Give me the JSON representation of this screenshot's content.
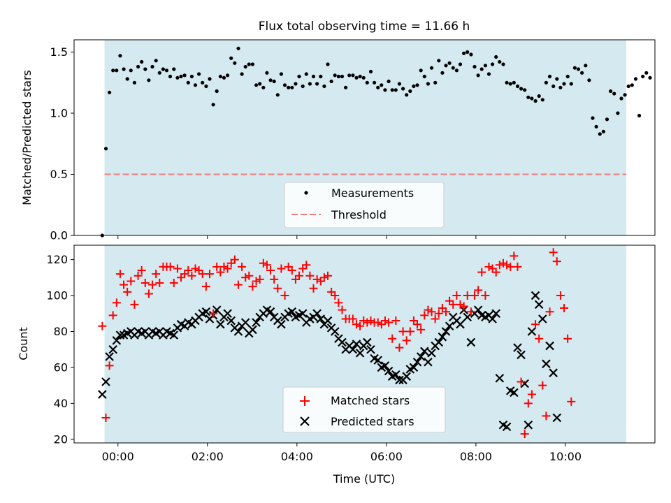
{
  "colors": {
    "shade": "#d4eaf0",
    "threshold": "#f07b7b",
    "matched": "#ff0000",
    "predicted": "#000000",
    "measure": "#000000"
  },
  "chart_data": [
    {
      "type": "scatter",
      "title": "Flux total observing time = 11.66 h",
      "xlabel": "",
      "ylabel": "Matched/Predicted stars",
      "xlim_hours": [
        -0.98,
        12.0
      ],
      "ylim": [
        0,
        1.6
      ],
      "yticks": [
        0.0,
        0.5,
        1.0,
        1.5
      ],
      "ytick_labels": [
        "0.0",
        "0.5",
        "1.0",
        "1.5"
      ],
      "observing_span_hours": [
        -0.3,
        11.36
      ],
      "threshold": 0.5,
      "legend": {
        "position": "bottom-center",
        "entries": [
          "Measurements",
          "Threshold"
        ]
      },
      "series": [
        {
          "name": "Measurements",
          "x_start": -0.35,
          "x_step": 0.08,
          "values": [
            0.0,
            0.71,
            1.17,
            1.35,
            1.35,
            1.47,
            1.36,
            1.28,
            1.35,
            1.25,
            1.38,
            1.42,
            1.36,
            1.27,
            1.38,
            1.43,
            1.33,
            1.36,
            1.35,
            1.3,
            1.36,
            1.29,
            1.3,
            1.31,
            1.25,
            1.3,
            1.23,
            1.32,
            1.25,
            1.22,
            1.28,
            1.07,
            1.18,
            1.3,
            1.29,
            1.31,
            1.45,
            1.41,
            1.53,
            1.32,
            1.38,
            1.4,
            1.4,
            1.23,
            1.24,
            1.21,
            1.33,
            1.27,
            1.26,
            1.15,
            1.32,
            1.23,
            1.21,
            1.21,
            1.24,
            1.3,
            1.22,
            1.32,
            1.24,
            1.3,
            1.24,
            1.3,
            1.22,
            1.4,
            1.26,
            1.31,
            1.3,
            1.3,
            1.21,
            1.31,
            1.31,
            1.29,
            1.3,
            1.29,
            1.25,
            1.34,
            1.25,
            1.21,
            1.23,
            1.19,
            1.26,
            1.19,
            1.19,
            1.24,
            1.2,
            1.15,
            1.18,
            1.22,
            1.23,
            1.35,
            1.3,
            1.24,
            1.37,
            1.25,
            1.43,
            1.33,
            1.39,
            1.41,
            1.37,
            1.35,
            1.4,
            1.49,
            1.5,
            1.48,
            1.38,
            1.31,
            1.36,
            1.39,
            1.32,
            1.4,
            1.46,
            1.42,
            1.4,
            1.25,
            1.24,
            1.25,
            1.22,
            1.2,
            1.19,
            1.13,
            1.12,
            1.1,
            1.14,
            1.11,
            1.25,
            1.3,
            1.22,
            1.28,
            1.21,
            1.24,
            1.3,
            1.24,
            1.37,
            1.36,
            1.33,
            1.39,
            1.27,
            0.96,
            0.89,
            0.83,
            0.85,
            0.95,
            1.18,
            1.16,
            1.0,
            1.12,
            1.15,
            1.22,
            1.23,
            1.28,
            0.98,
            1.3,
            1.33,
            1.29
          ]
        },
        {
          "name": "Threshold",
          "style": "dashed",
          "value": 0.5
        }
      ]
    },
    {
      "type": "scatter",
      "title": "",
      "xlabel": "Time (UTC)",
      "ylabel": "Count",
      "xlim_hours": [
        -0.98,
        12.0
      ],
      "ylim": [
        18,
        128
      ],
      "yticks": [
        20,
        40,
        60,
        80,
        100,
        120
      ],
      "ytick_labels": [
        "20",
        "40",
        "60",
        "80",
        "100",
        "120"
      ],
      "xticks_hours": [
        0,
        2,
        4,
        6,
        8,
        10
      ],
      "xtick_labels": [
        "00:00",
        "02:00",
        "04:00",
        "06:00",
        "08:00",
        "10:00"
      ],
      "observing_span_hours": [
        -0.3,
        11.36
      ],
      "legend": {
        "position": "bottom-center",
        "entries": [
          "Matched stars",
          "Predicted stars"
        ]
      },
      "series": [
        {
          "name": "Matched stars",
          "marker": "+",
          "x_start": -0.35,
          "x_step": 0.08,
          "values": [
            83,
            32,
            61,
            89,
            96,
            112,
            106,
            102,
            108,
            95,
            111,
            114,
            107,
            101,
            106,
            112,
            107,
            116,
            116,
            116,
            107,
            115,
            110,
            112,
            114,
            111,
            115,
            114,
            112,
            105,
            112,
            90,
            116,
            113,
            116,
            115,
            118,
            120,
            106,
            116,
            110,
            111,
            105,
            108,
            109,
            118,
            117,
            114,
            109,
            104,
            115,
            100,
            116,
            114,
            109,
            111,
            115,
            117,
            111,
            104,
            109,
            108,
            110,
            111,
            102,
            100,
            96,
            92,
            87,
            87,
            87,
            84,
            83,
            86,
            85,
            86,
            85,
            85,
            84,
            86,
            85,
            76,
            86,
            71,
            80,
            75,
            80,
            86,
            84,
            81,
            89,
            92,
            91,
            87,
            90,
            93,
            91,
            97,
            95,
            100,
            95,
            94,
            100,
            91,
            100,
            103,
            113,
            100,
            116,
            115,
            113,
            117,
            118,
            117,
            116,
            122,
            116,
            52,
            23,
            40,
            45,
            84,
            76,
            50,
            33,
            91,
            124,
            119,
            100,
            93,
            76,
            41
          ]
        },
        {
          "name": "Predicted stars",
          "marker": "x",
          "x_start": -0.35,
          "x_step": 0.08,
          "values": [
            45,
            52,
            66,
            70,
            75,
            78,
            78,
            79,
            80,
            78,
            80,
            79,
            80,
            78,
            80,
            79,
            80,
            78,
            80,
            79,
            78,
            82,
            84,
            83,
            85,
            84,
            86,
            88,
            90,
            91,
            87,
            89,
            92,
            84,
            88,
            90,
            86,
            82,
            80,
            83,
            85,
            79,
            81,
            85,
            88,
            90,
            92,
            91,
            88,
            86,
            84,
            88,
            90,
            91,
            88,
            89,
            90,
            85,
            87,
            88,
            90,
            87,
            84,
            86,
            82,
            80,
            76,
            74,
            70,
            72,
            70,
            73,
            68,
            72,
            74,
            70,
            65,
            64,
            60,
            61,
            58,
            55,
            56,
            53,
            53,
            55,
            59,
            60,
            63,
            66,
            69,
            63,
            68,
            72,
            74,
            77,
            80,
            83,
            88,
            86,
            84,
            92,
            88,
            74,
            90,
            92,
            89,
            88,
            89,
            87,
            90,
            54,
            28,
            27,
            47,
            46,
            71,
            67,
            51,
            28,
            80,
            100,
            95,
            87,
            62,
            72,
            57,
            32
          ]
        }
      ]
    }
  ]
}
